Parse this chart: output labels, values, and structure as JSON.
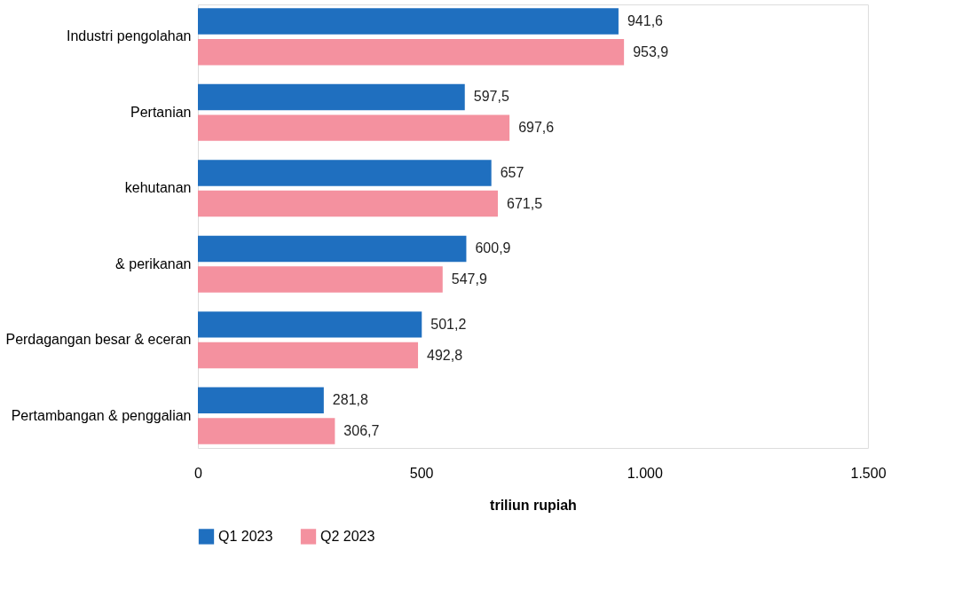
{
  "chart_data": {
    "type": "bar",
    "orientation": "horizontal",
    "xlabel": "triliun rupiah",
    "categories": [
      "Industri pengolahan",
      "Pertanian",
      "kehutanan",
      "& perikanan",
      "Perdagangan besar & eceran",
      "Pertambangan & penggalian"
    ],
    "series": [
      {
        "name": "Q1 2023",
        "color": "#1f6fbf",
        "values": [
          941.6,
          597.5,
          657,
          600.9,
          501.2,
          281.8
        ],
        "value_labels": [
          "941,6",
          "597,5",
          "657",
          "600,9",
          "501,2",
          "281,8"
        ]
      },
      {
        "name": "Q2 2023",
        "color": "#f4919f",
        "values": [
          953.9,
          697.6,
          671.5,
          547.9,
          492.8,
          306.7
        ],
        "value_labels": [
          "953,9",
          "697,6",
          "671,5",
          "547,9",
          "492,8",
          "306,7"
        ]
      }
    ],
    "xlim": [
      0,
      1500
    ],
    "xticks": [
      0,
      500,
      {
        "value": 1000,
        "label": "1.000"
      },
      {
        "value": 1500,
        "label": "1.500"
      }
    ],
    "grid": false,
    "legend": "bottom"
  }
}
